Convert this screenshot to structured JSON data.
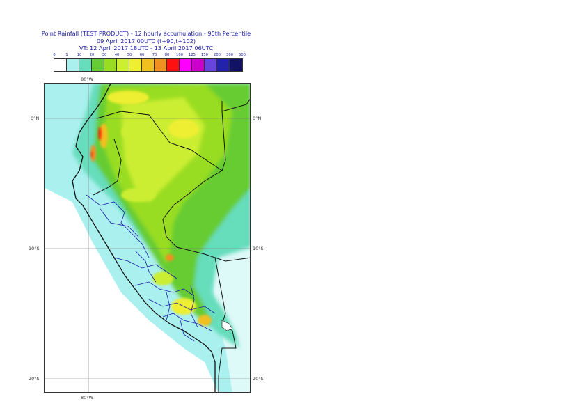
{
  "title": {
    "line1": "Point Rainfall (TEST PRODUCT) - 12 hourly accumulation - 95th Percentile",
    "line2": "09 April 2017 00UTC (t+90,t+102)",
    "line3": "VT: 12 April 2017 18UTC - 13 April 2017 06UTC"
  },
  "legend": {
    "ticks": [
      "0",
      "1",
      "10",
      "20",
      "30",
      "40",
      "50",
      "60",
      "70",
      "80",
      "100",
      "125",
      "150",
      "200",
      "300",
      "500"
    ],
    "colors": [
      "#ffffff",
      "#aaf0ee",
      "#66ddbb",
      "#66cc33",
      "#99dd22",
      "#ccee33",
      "#eeee33",
      "#f0c020",
      "#f09020",
      "#ff1010",
      "#ff00ff",
      "#cc00cc",
      "#6644dd",
      "#2222aa",
      "#111166"
    ]
  },
  "axes": {
    "lon_top": "80°W",
    "lon_bottom": "80°W",
    "lat_left": [
      "0°N",
      "10°S",
      "20°S"
    ],
    "lat_right": [
      "0°N",
      "10°S",
      "20°S"
    ]
  }
}
